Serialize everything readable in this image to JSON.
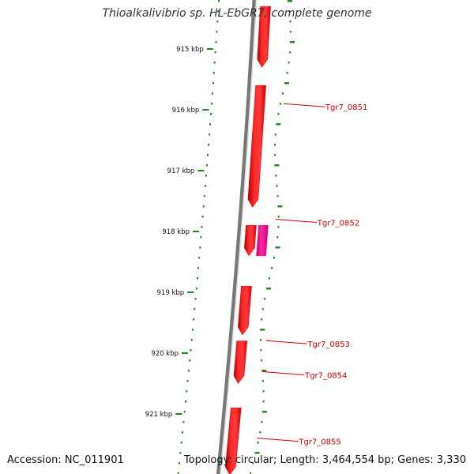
{
  "title": "Thioalkalivibrio sp. HL-EbGR7, complete genome",
  "accession": "Accession: NC_011901",
  "topology": "Topology: circular; Length: 3,464,554 bp; Genes: 3,330",
  "ticks": [
    {
      "label": "915 kbp",
      "kbp": 915
    },
    {
      "label": "916 kbp",
      "kbp": 916
    },
    {
      "label": "917 kbp",
      "kbp": 917
    },
    {
      "label": "918 kbp",
      "kbp": 918
    },
    {
      "label": "919 kbp",
      "kbp": 919
    },
    {
      "label": "920 kbp",
      "kbp": 920
    },
    {
      "label": "921 kbp",
      "kbp": 921
    }
  ],
  "genes": [
    {
      "name": "",
      "start_kbp": 914.3,
      "end_kbp": 915.3,
      "strand": "forward",
      "color": "#ee1111"
    },
    {
      "name": "Tgr7_0851",
      "start_kbp": 915.6,
      "end_kbp": 917.6,
      "strand": "forward",
      "color": "#ee1111"
    },
    {
      "name": "Tgr7_0852",
      "start_kbp": 917.9,
      "end_kbp": 918.4,
      "strand": "forward",
      "color": "#ee1111"
    },
    {
      "name": "",
      "start_kbp": 917.9,
      "end_kbp": 918.4,
      "strand": "reverse",
      "color": "#ee1199"
    },
    {
      "name": "Tgr7_0853",
      "start_kbp": 918.9,
      "end_kbp": 919.7,
      "strand": "forward",
      "color": "#ee1111"
    },
    {
      "name": "Tgr7_0854",
      "start_kbp": 919.8,
      "end_kbp": 920.5,
      "strand": "forward",
      "color": "#ee1111"
    },
    {
      "name": "Tgr7_0855",
      "start_kbp": 920.9,
      "end_kbp": 922.0,
      "strand": "forward",
      "color": "#ee1111"
    }
  ],
  "colors": {
    "backbone": "#777777",
    "gc_plot": "#228822",
    "gene_forward": "#ee1111",
    "gene_other": "#ee1199",
    "label": "#cc0000"
  }
}
